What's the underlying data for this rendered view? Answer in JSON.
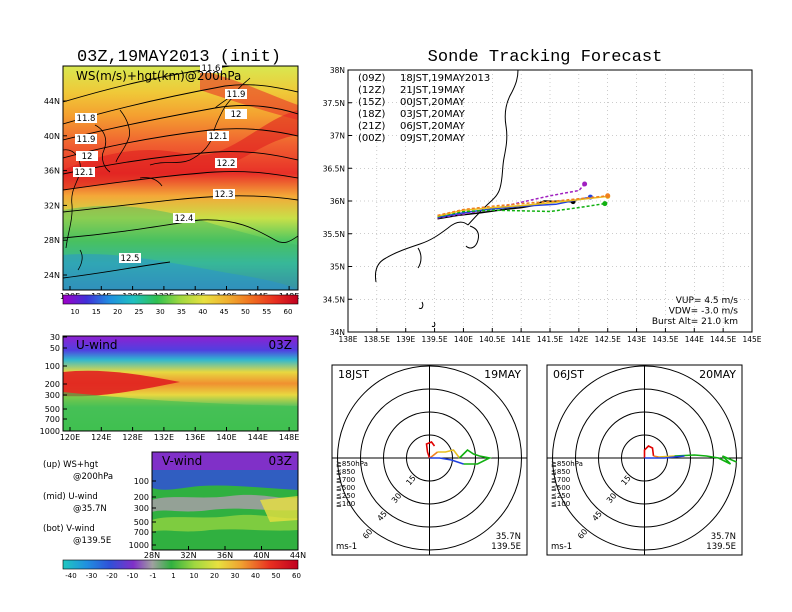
{
  "left_title": "03Z,19MAY2013 (init)",
  "right_title": "Sonde Tracking Forecast",
  "chart_data": [
    {
      "type": "heatmap",
      "name": "WS+hgt map",
      "title": "WS(m/s)+hgt(km)@200hPa",
      "x_ticks": [
        "120E",
        "124E",
        "128E",
        "132E",
        "136E",
        "140E",
        "144E",
        "148E"
      ],
      "y_ticks": [
        "24N",
        "28N",
        "32N",
        "36N",
        "40N",
        "44N"
      ],
      "xlim": [
        120,
        150
      ],
      "ylim": [
        22,
        48
      ],
      "contour_labels": [
        "11.6",
        "11.8",
        "11.9",
        "12",
        "12.1",
        "11.9",
        "12",
        "12.1",
        "12.2",
        "12.3",
        "12.4",
        "12.5"
      ],
      "colorbar_values": [
        "10",
        "15",
        "20",
        "25",
        "30",
        "35",
        "40",
        "45",
        "50",
        "55",
        "60"
      ]
    },
    {
      "type": "heatmap",
      "name": "U-wind section",
      "panel_label": "U-wind",
      "time_label": "03Z",
      "x_ticks": [
        "120E",
        "124E",
        "128E",
        "132E",
        "136E",
        "140E",
        "144E",
        "148E"
      ],
      "y_ticks": [
        "30",
        "50",
        "100",
        "200",
        "300",
        "500",
        "700",
        "1000"
      ]
    },
    {
      "type": "heatmap",
      "name": "V-wind section",
      "panel_label": "V-wind",
      "time_label": "03Z",
      "x_ticks": [
        "28N",
        "32N",
        "36N",
        "40N",
        "44N"
      ],
      "y_ticks": [
        "100",
        "200",
        "300",
        "500",
        "700",
        "1000"
      ],
      "colorbar_values": [
        "-40",
        "-30",
        "-20",
        "-10",
        "-1",
        "1",
        "10",
        "20",
        "30",
        "40",
        "50",
        "60"
      ]
    },
    {
      "type": "line",
      "name": "Sonde tracks",
      "x_ticks": [
        "138E",
        "138.5E",
        "139E",
        "139.5E",
        "140E",
        "140.5E",
        "141E",
        "141.5E",
        "142E",
        "142.5E",
        "143E",
        "143.5E",
        "144E",
        "144.5E",
        "145E"
      ],
      "y_ticks": [
        "34N",
        "34.5N",
        "35N",
        "35.5N",
        "36N",
        "36.5N",
        "37N",
        "37.5N",
        "38N"
      ],
      "xlim": [
        138,
        145
      ],
      "ylim": [
        34,
        38
      ],
      "legend": [
        {
          "code": "(09Z)",
          "time": "18JST,19MAY2013",
          "color": "#000000"
        },
        {
          "code": "(12Z)",
          "time": "21JST,19MAY",
          "color": "#a020c0"
        },
        {
          "code": "(15Z)",
          "time": "00JST,20MAY",
          "color": "#2040e0"
        },
        {
          "code": "(18Z)",
          "time": "03JST,20MAY",
          "color": "#10b010"
        },
        {
          "code": "(21Z)",
          "time": "06JST,20MAY",
          "color": "#e8c020"
        },
        {
          "code": "(00Z)",
          "time": "09JST,20MAY",
          "color": "#f08020"
        }
      ],
      "series": [
        {
          "color": "#000000",
          "x": [
            139.55,
            139.9,
            140.3,
            140.7,
            141.0,
            141.2,
            141.4,
            141.9
          ],
          "y": [
            35.73,
            35.78,
            35.82,
            35.87,
            35.9,
            35.93,
            36.0,
            35.99
          ]
        },
        {
          "color": "#a020c0",
          "x": [
            139.55,
            140.0,
            140.5,
            141.0,
            141.5,
            142.0,
            142.1
          ],
          "y": [
            35.74,
            35.8,
            35.88,
            35.98,
            36.08,
            36.16,
            36.26
          ]
        },
        {
          "color": "#2040e0",
          "x": [
            139.55,
            140.0,
            140.5,
            141.0,
            141.6,
            142.2
          ],
          "y": [
            35.75,
            35.82,
            35.88,
            35.92,
            35.95,
            36.06
          ]
        },
        {
          "color": "#10b010",
          "x": [
            139.55,
            140.0,
            140.5,
            141.0,
            141.5,
            142.0,
            142.45
          ],
          "y": [
            35.76,
            35.84,
            35.86,
            35.85,
            35.84,
            35.9,
            35.96
          ]
        },
        {
          "color": "#e8c020",
          "x": [
            139.55,
            140.0,
            140.5,
            141.0,
            141.6,
            142.5
          ],
          "y": [
            35.77,
            35.86,
            35.9,
            35.93,
            35.98,
            36.07
          ]
        },
        {
          "color": "#f08020",
          "x": [
            139.55,
            140.0,
            140.5,
            141.0,
            141.6,
            142.5
          ],
          "y": [
            35.78,
            35.87,
            35.92,
            35.96,
            36.0,
            36.08
          ]
        }
      ],
      "info": [
        "VUP=  4.5 m/s",
        "VDW= -3.0 m/s",
        "Burst Alt=  21.0 km"
      ]
    },
    {
      "type": "line",
      "name": "Hodograph 18JST",
      "left_label": "18JST",
      "right_label": "19MAY",
      "ring_labels": [
        "15",
        "30",
        "45",
        "60"
      ],
      "legend": [
        "≧850hPa",
        "≦850",
        "≦700",
        "≦500",
        "≦250",
        "≦100"
      ],
      "legend_colors": [
        "#e00000",
        "#f08020",
        "#e8c020",
        "#10b010",
        "#00c0c0",
        "#2040e0"
      ],
      "unit": "ms-1",
      "location": [
        "35.7N",
        "139.5E"
      ]
    },
    {
      "type": "line",
      "name": "Hodograph 06JST",
      "left_label": "06JST",
      "right_label": "20MAY",
      "ring_labels": [
        "15",
        "30",
        "45",
        "60"
      ],
      "legend": [
        "≧850hPa",
        "≦850",
        "≦700",
        "≦500",
        "≦250",
        "≦100"
      ],
      "legend_colors": [
        "#e00000",
        "#f08020",
        "#e8c020",
        "#10b010",
        "#00c0c0",
        "#2040e0"
      ],
      "unit": "ms-1",
      "location": [
        "35.7N",
        "139.5E"
      ]
    }
  ],
  "notes": [
    {
      "line1": "(up) WS+hgt",
      "line2": "@200hPa"
    },
    {
      "line1": "(mid) U-wind",
      "line2": "@35.7N"
    },
    {
      "line1": "(bot) V-wind",
      "line2": "@139.5E"
    }
  ]
}
